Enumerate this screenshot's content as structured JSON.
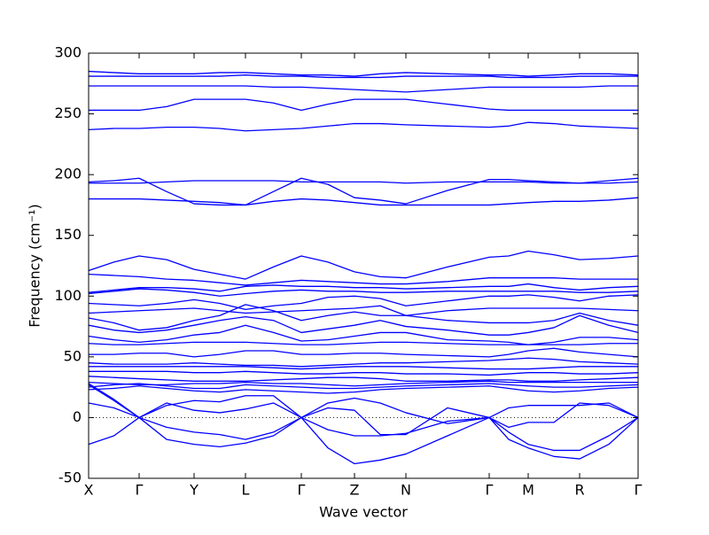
{
  "chart_data": {
    "type": "line",
    "xlabel": "Wave vector",
    "ylabel": "Frequency (cm⁻¹)",
    "color": "#0000ff",
    "zero_line": true,
    "xlim": [
      0,
      6.2
    ],
    "xticks": [
      {
        "value": 0,
        "label": "X"
      },
      {
        "value": 0.57,
        "label": "Γ"
      },
      {
        "value": 1.19,
        "label": "Y"
      },
      {
        "value": 1.77,
        "label": "L"
      },
      {
        "value": 2.4,
        "label": "Γ"
      },
      {
        "value": 3.0,
        "label": "Z"
      },
      {
        "value": 3.58,
        "label": "N"
      },
      {
        "value": 4.52,
        "label": "Γ"
      },
      {
        "value": 4.96,
        "label": "M"
      },
      {
        "value": 5.54,
        "label": "R"
      },
      {
        "value": 6.2,
        "label": "Γ"
      }
    ],
    "ylim": [
      -50,
      300
    ],
    "yticks": [
      -50,
      0,
      50,
      100,
      150,
      200,
      250,
      300
    ],
    "x": [
      0,
      0.285,
      0.57,
      0.88,
      1.19,
      1.48,
      1.77,
      2.085,
      2.4,
      2.7,
      3.0,
      3.29,
      3.58,
      4.05,
      4.52,
      4.74,
      4.96,
      5.25,
      5.54,
      5.87,
      6.2
    ],
    "series": [
      {
        "values": [
          285,
          284,
          283,
          283,
          283,
          284,
          284,
          283,
          282,
          282,
          281,
          283,
          284,
          283,
          282,
          282,
          281,
          282,
          283,
          283,
          282
        ]
      },
      {
        "values": [
          281,
          281,
          281,
          281,
          281,
          281,
          282,
          281,
          281,
          280,
          280,
          280,
          281,
          281,
          281,
          280,
          280,
          280,
          281,
          281,
          281
        ]
      },
      {
        "values": [
          273,
          273,
          273,
          273,
          273,
          273,
          273,
          272,
          272,
          271,
          270,
          269,
          268,
          270,
          272,
          272,
          272,
          272,
          272,
          273,
          273
        ]
      },
      {
        "values": [
          253,
          253,
          253,
          256,
          262,
          262,
          262,
          259,
          253,
          258,
          262,
          262,
          262,
          258,
          254,
          253,
          253,
          253,
          253,
          253,
          253
        ]
      },
      {
        "values": [
          237,
          238,
          238,
          239,
          239,
          238,
          236,
          237,
          238,
          240,
          242,
          242,
          241,
          240,
          239,
          240,
          243,
          242,
          240,
          239,
          238
        ]
      },
      {
        "values": [
          194,
          195,
          197,
          186,
          176,
          175,
          175,
          186,
          197,
          192,
          181,
          179,
          176,
          187,
          196,
          196,
          195,
          194,
          193,
          195,
          197
        ]
      },
      {
        "values": [
          193,
          193,
          193,
          194,
          195,
          195,
          195,
          195,
          194,
          194,
          194,
          194,
          193,
          194,
          194,
          194,
          194,
          193,
          193,
          193,
          194
        ]
      },
      {
        "values": [
          180,
          180,
          180,
          179,
          178,
          177,
          175,
          178,
          180,
          179,
          177,
          175,
          175,
          175,
          175,
          176,
          177,
          178,
          178,
          179,
          181
        ]
      },
      {
        "values": [
          121,
          128,
          133,
          130,
          122,
          118,
          114,
          124,
          133,
          128,
          120,
          116,
          115,
          124,
          132,
          133,
          137,
          134,
          130,
          131,
          133
        ]
      },
      {
        "values": [
          118,
          117,
          116,
          114,
          113,
          111,
          109,
          111,
          113,
          112,
          111,
          110,
          110,
          112,
          115,
          115,
          115,
          115,
          114,
          114,
          114
        ]
      },
      {
        "values": [
          103,
          105,
          107,
          107,
          106,
          104,
          108,
          109,
          108,
          108,
          107,
          107,
          106,
          107,
          108,
          108,
          110,
          107,
          105,
          107,
          108
        ]
      },
      {
        "values": [
          102,
          104,
          106,
          105,
          103,
          100,
          102,
          104,
          105,
          104,
          104,
          103,
          103,
          104,
          104,
          104,
          104,
          104,
          103,
          103,
          104
        ]
      },
      {
        "values": [
          94,
          93,
          92,
          94,
          97,
          94,
          89,
          92,
          94,
          99,
          100,
          98,
          92,
          96,
          100,
          100,
          101,
          99,
          96,
          100,
          101
        ]
      },
      {
        "values": [
          86,
          87,
          88,
          89,
          90,
          88,
          86,
          87,
          88,
          89,
          90,
          92,
          84,
          88,
          90,
          90,
          90,
          90,
          90,
          89,
          88
        ]
      },
      {
        "values": [
          82,
          78,
          72,
          74,
          80,
          84,
          93,
          88,
          80,
          84,
          87,
          84,
          84,
          80,
          78,
          78,
          78,
          80,
          86,
          80,
          76
        ]
      },
      {
        "values": [
          76,
          72,
          70,
          72,
          76,
          80,
          83,
          80,
          70,
          73,
          76,
          80,
          75,
          72,
          68,
          68,
          70,
          74,
          84,
          76,
          70
        ]
      },
      {
        "values": [
          67,
          64,
          62,
          64,
          68,
          70,
          76,
          70,
          63,
          64,
          67,
          70,
          70,
          64,
          63,
          62,
          60,
          62,
          66,
          66,
          64
        ]
      },
      {
        "values": [
          61,
          60,
          60,
          61,
          62,
          62,
          62,
          61,
          60,
          60,
          61,
          62,
          62,
          61,
          60,
          60,
          60,
          60,
          60,
          61,
          61
        ]
      },
      {
        "values": [
          52,
          52,
          53,
          53,
          50,
          52,
          55,
          55,
          52,
          52,
          53,
          53,
          52,
          51,
          50,
          52,
          55,
          57,
          54,
          52,
          50
        ]
      },
      {
        "values": [
          45,
          44,
          44,
          44,
          45,
          44,
          43,
          43,
          42,
          43,
          44,
          45,
          45,
          46,
          47,
          48,
          49,
          48,
          46,
          45,
          44
        ]
      },
      {
        "values": [
          42,
          42,
          42,
          42,
          42,
          42,
          42,
          41,
          40,
          41,
          42,
          42,
          42,
          41,
          40,
          40,
          40,
          41,
          42,
          42,
          42
        ]
      },
      {
        "values": [
          38,
          38,
          38,
          38,
          37,
          37,
          38,
          37,
          36,
          36,
          37,
          37,
          36,
          36,
          35,
          36,
          37,
          37,
          36,
          36,
          37
        ]
      },
      {
        "values": [
          34,
          33,
          32,
          31,
          30,
          30,
          30,
          31,
          32,
          33,
          33,
          32,
          30,
          30,
          31,
          31,
          30,
          30,
          31,
          32,
          33
        ]
      },
      {
        "values": [
          29,
          28,
          27,
          27,
          28,
          28,
          29,
          28,
          28,
          27,
          26,
          27,
          28,
          29,
          30,
          29,
          29,
          29,
          29,
          29,
          29
        ]
      },
      {
        "values": [
          25,
          27,
          28,
          26,
          24,
          24,
          27,
          26,
          25,
          24,
          24,
          25,
          26,
          27,
          28,
          27,
          26,
          25,
          25,
          26,
          27
        ]
      },
      {
        "values": [
          23,
          24,
          26,
          24,
          22,
          21,
          23,
          22,
          21,
          20,
          21,
          23,
          24,
          25,
          26,
          24,
          22,
          21,
          22,
          24,
          25
        ]
      },
      {
        "values": [
          28,
          15,
          0,
          12,
          6,
          4,
          7,
          12,
          0,
          8,
          6,
          -14,
          -14,
          8,
          0,
          -8,
          -4,
          -4,
          12,
          10,
          0
        ]
      },
      {
        "values": [
          27,
          14,
          0,
          10,
          14,
          13,
          18,
          18,
          0,
          12,
          16,
          12,
          4,
          -5,
          0,
          8,
          10,
          10,
          10,
          12,
          0
        ]
      },
      {
        "values": [
          12,
          8,
          0,
          -8,
          -12,
          -14,
          -18,
          -12,
          0,
          -25,
          -38,
          -35,
          -30,
          -15,
          0,
          -18,
          -25,
          -32,
          -34,
          -22,
          0
        ]
      },
      {
        "values": [
          -22,
          -15,
          0,
          -18,
          -22,
          -24,
          -21,
          -15,
          0,
          -10,
          -15,
          -15,
          -13,
          -3,
          0,
          -12,
          -22,
          -27,
          -27,
          -15,
          0
        ]
      }
    ]
  }
}
